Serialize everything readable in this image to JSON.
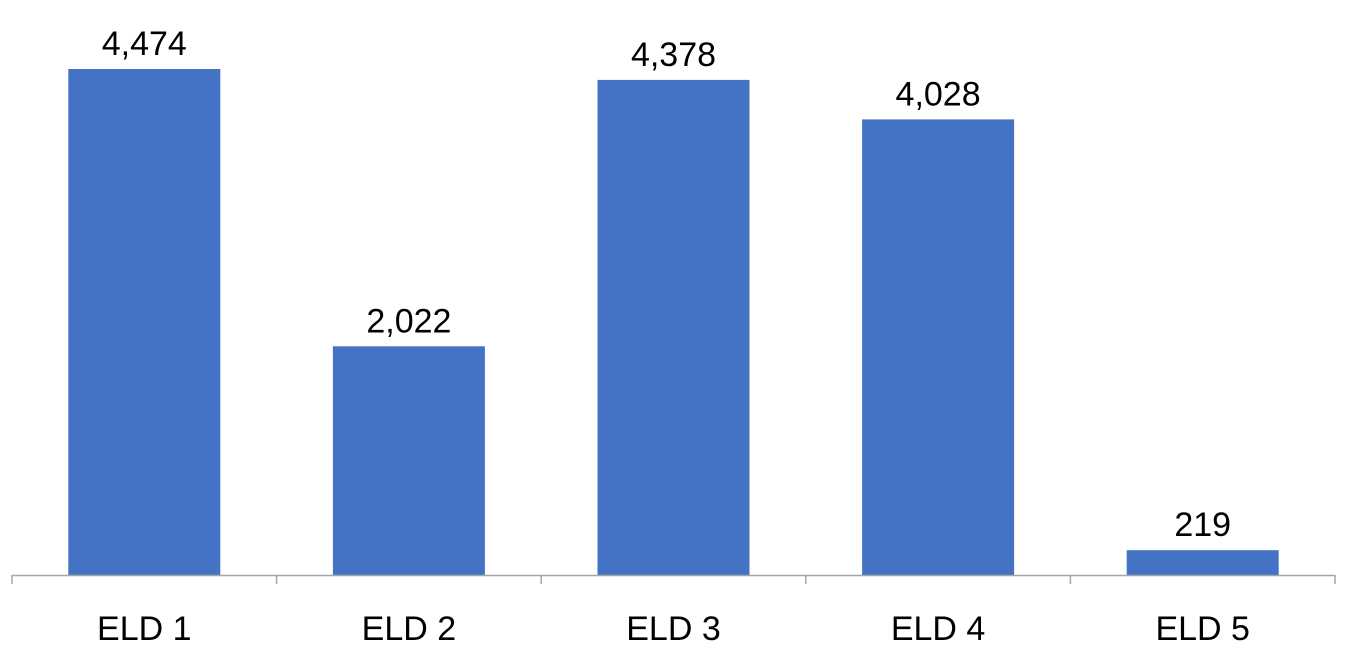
{
  "chart_data": {
    "type": "bar",
    "categories": [
      "ELD 1",
      "ELD 2",
      "ELD 3",
      "ELD 4",
      "ELD 5"
    ],
    "values": [
      4474,
      2022,
      4378,
      4028,
      219
    ],
    "value_labels": [
      "4,474",
      "2,022",
      "4,378",
      "4,028",
      "219"
    ],
    "title": "",
    "xlabel": "",
    "ylabel": "",
    "ylim": [
      0,
      4474
    ],
    "grid": false,
    "legend": "none",
    "bar_color": "#4472C4",
    "axis_color": "#A6A6A6"
  }
}
